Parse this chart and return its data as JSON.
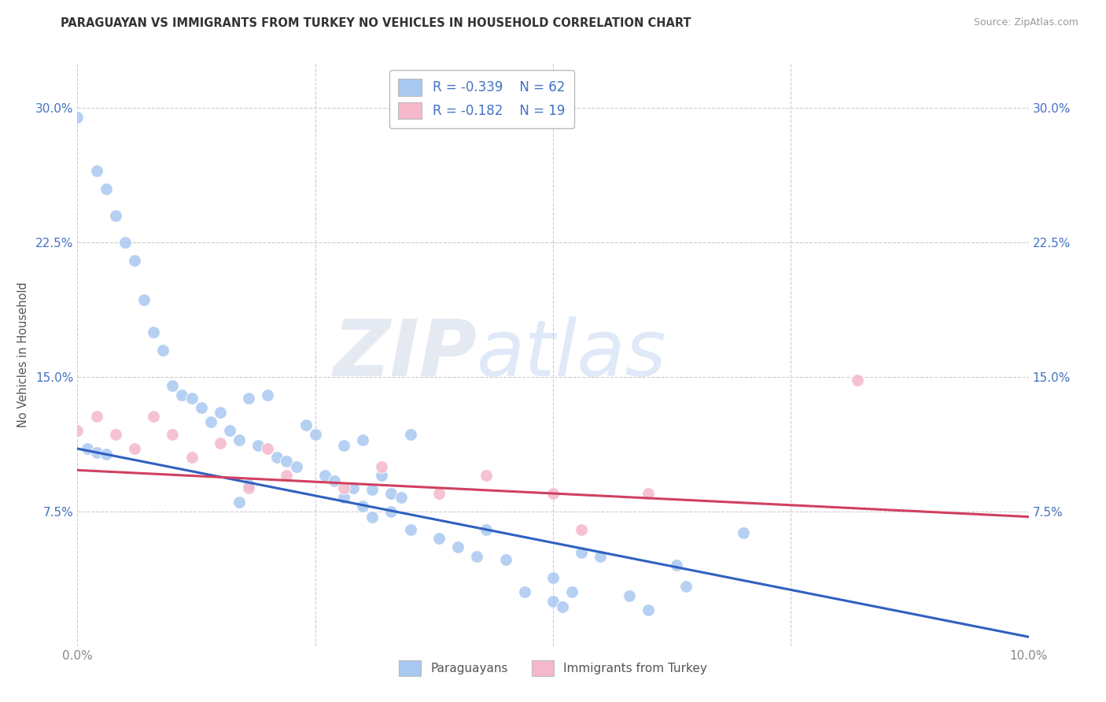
{
  "title": "PARAGUAYAN VS IMMIGRANTS FROM TURKEY NO VEHICLES IN HOUSEHOLD CORRELATION CHART",
  "source": "Source: ZipAtlas.com",
  "ylabel": "No Vehicles in Household",
  "x_min": 0.0,
  "x_max": 0.1,
  "y_min": 0.0,
  "y_max": 0.325,
  "y_ticks": [
    0.0,
    0.075,
    0.15,
    0.225,
    0.3
  ],
  "y_tick_labels": [
    "",
    "7.5%",
    "15.0%",
    "22.5%",
    "30.0%"
  ],
  "x_ticks": [
    0.0,
    0.025,
    0.05,
    0.075,
    0.1
  ],
  "legend_r1": "R = -0.339",
  "legend_n1": "N = 62",
  "legend_r2": "R = -0.182",
  "legend_n2": "N = 19",
  "legend_label1": "Paraguayans",
  "legend_label2": "Immigrants from Turkey",
  "color_blue": "#A8C8F0",
  "color_pink": "#F5B8CA",
  "color_line_blue": "#3060C0",
  "color_line_pink": "#D04060",
  "color_text_blue": "#4472C4",
  "watermark_text": "ZIPatlas",
  "blue_line_x0": 0.0,
  "blue_line_y0": 0.11,
  "blue_line_x1": 0.1,
  "blue_line_y1": 0.005,
  "pink_line_x0": 0.0,
  "pink_line_y0": 0.098,
  "pink_line_x1": 0.1,
  "pink_line_y1": 0.072,
  "blue_x": [
    0.0,
    0.002,
    0.003,
    0.004,
    0.005,
    0.006,
    0.007,
    0.008,
    0.009,
    0.01,
    0.011,
    0.012,
    0.013,
    0.014,
    0.015,
    0.016,
    0.017,
    0.018,
    0.019,
    0.02,
    0.021,
    0.022,
    0.023,
    0.024,
    0.025,
    0.026,
    0.027,
    0.028,
    0.029,
    0.03,
    0.031,
    0.032,
    0.033,
    0.034,
    0.035,
    0.017,
    0.018,
    0.028,
    0.03,
    0.031,
    0.033,
    0.035,
    0.038,
    0.04,
    0.042,
    0.043,
    0.045,
    0.047,
    0.05,
    0.052,
    0.053,
    0.055,
    0.058,
    0.05,
    0.051,
    0.06,
    0.063,
    0.001,
    0.002,
    0.003,
    0.064,
    0.07
  ],
  "blue_y": [
    0.295,
    0.265,
    0.255,
    0.24,
    0.225,
    0.215,
    0.193,
    0.175,
    0.165,
    0.145,
    0.14,
    0.138,
    0.133,
    0.125,
    0.13,
    0.12,
    0.115,
    0.138,
    0.112,
    0.14,
    0.105,
    0.103,
    0.1,
    0.123,
    0.118,
    0.095,
    0.092,
    0.112,
    0.088,
    0.115,
    0.087,
    0.095,
    0.085,
    0.083,
    0.118,
    0.08,
    0.09,
    0.083,
    0.078,
    0.072,
    0.075,
    0.065,
    0.06,
    0.055,
    0.05,
    0.065,
    0.048,
    0.03,
    0.038,
    0.03,
    0.052,
    0.05,
    0.028,
    0.025,
    0.022,
    0.02,
    0.045,
    0.11,
    0.108,
    0.107,
    0.033,
    0.063
  ],
  "pink_x": [
    0.0,
    0.002,
    0.004,
    0.006,
    0.008,
    0.01,
    0.012,
    0.015,
    0.018,
    0.02,
    0.022,
    0.028,
    0.032,
    0.038,
    0.043,
    0.05,
    0.053,
    0.06,
    0.082
  ],
  "pink_y": [
    0.12,
    0.128,
    0.118,
    0.11,
    0.128,
    0.118,
    0.105,
    0.113,
    0.088,
    0.11,
    0.095,
    0.088,
    0.1,
    0.085,
    0.095,
    0.085,
    0.065,
    0.085,
    0.148
  ]
}
